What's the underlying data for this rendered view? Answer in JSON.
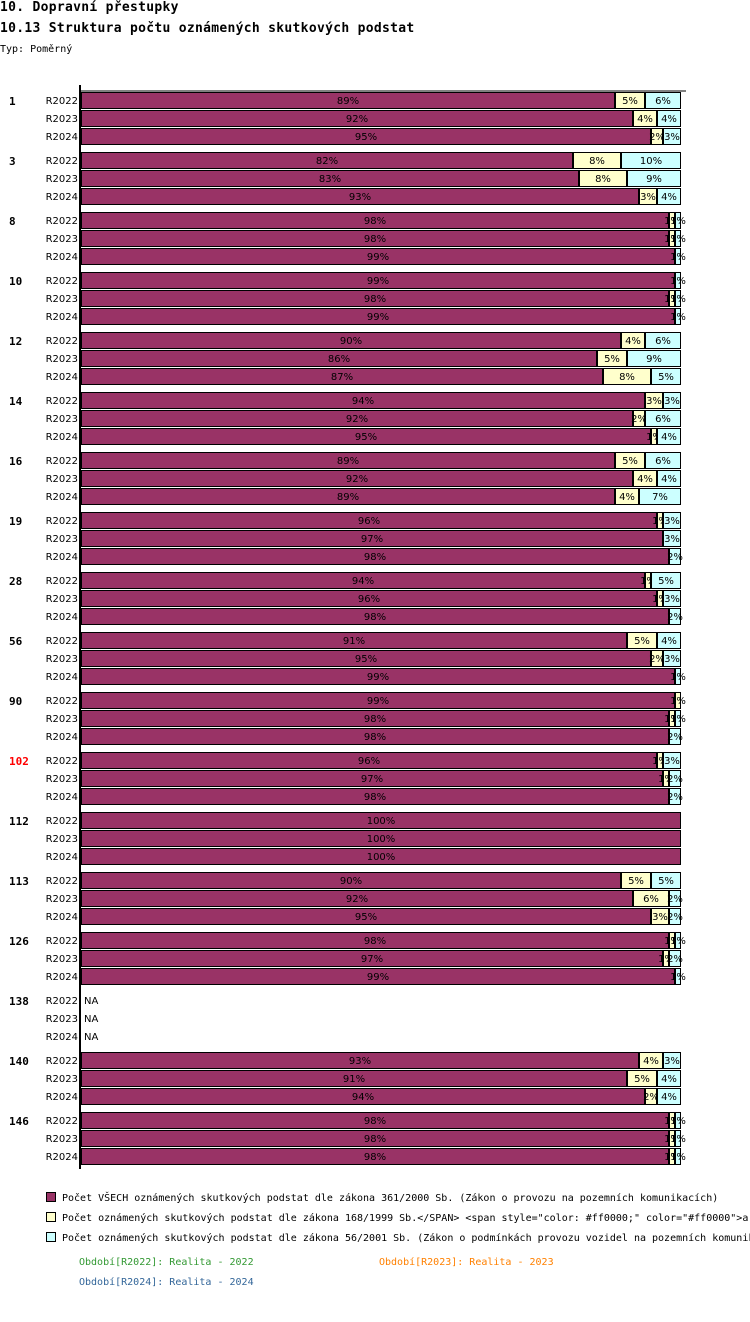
{
  "header": {
    "title": "10. Dopravní přestupky",
    "subtitle": "10.13 Struktura počtu oznámených skutkových podstat",
    "type_label": "Typ: Poměrný"
  },
  "colors": {
    "all": "#993366",
    "law168": "#ffffcc",
    "law56": "#ccffff",
    "highlight_group": "#ff0000",
    "period_2022": "#339933",
    "period_2023": "#ff8000",
    "period_2024": "#336699"
  },
  "chart_data": {
    "type": "bar",
    "orientation": "horizontal",
    "stacked": true,
    "percent": true,
    "xlim": [
      0,
      100
    ],
    "series": [
      {
        "name": "Počet VŠECH oznámených skutkových podstat dle zákona 361/2000 Sb. (Zákon o provozu na pozemních komunikacích)",
        "key": "all"
      },
      {
        "name": "Počet oznámených skutkových podstat dle zákona 168/1999 Sb.</SPAN> <span style=\"color: #ff0000;\" color=\"#ff0000\">a",
        "key": "law168"
      },
      {
        "name": "Počet oznámených skutkových podstat dle zákona 56/2001 Sb. (Zákon o podmínkách provozu vozidel na pozemních komunik",
        "key": "law56"
      }
    ],
    "periods": [
      "R2022",
      "R2023",
      "R2024"
    ],
    "groups": [
      {
        "label": "1",
        "highlight": false,
        "rows": [
          [
            89,
            5,
            6
          ],
          [
            92,
            4,
            4
          ],
          [
            95,
            2,
            3
          ]
        ]
      },
      {
        "label": "3",
        "highlight": false,
        "rows": [
          [
            82,
            8,
            10
          ],
          [
            83,
            8,
            9
          ],
          [
            93,
            3,
            4
          ]
        ]
      },
      {
        "label": "8",
        "highlight": false,
        "rows": [
          [
            98,
            1,
            1
          ],
          [
            98,
            1,
            1
          ],
          [
            99,
            0,
            1
          ]
        ]
      },
      {
        "label": "10",
        "highlight": false,
        "rows": [
          [
            99,
            0,
            1
          ],
          [
            98,
            1,
            1
          ],
          [
            99,
            0,
            1
          ]
        ]
      },
      {
        "label": "12",
        "highlight": false,
        "rows": [
          [
            90,
            4,
            6
          ],
          [
            86,
            5,
            9
          ],
          [
            87,
            8,
            5
          ]
        ]
      },
      {
        "label": "14",
        "highlight": false,
        "rows": [
          [
            94,
            3,
            3
          ],
          [
            92,
            2,
            6
          ],
          [
            95,
            1,
            4
          ]
        ]
      },
      {
        "label": "16",
        "highlight": false,
        "rows": [
          [
            89,
            5,
            6
          ],
          [
            92,
            4,
            4
          ],
          [
            89,
            4,
            7
          ]
        ]
      },
      {
        "label": "19",
        "highlight": false,
        "rows": [
          [
            96,
            1,
            3
          ],
          [
            97,
            0,
            3
          ],
          [
            98,
            0,
            2
          ]
        ]
      },
      {
        "label": "28",
        "highlight": false,
        "rows": [
          [
            94,
            1,
            5
          ],
          [
            96,
            1,
            3
          ],
          [
            98,
            0,
            2
          ]
        ]
      },
      {
        "label": "56",
        "highlight": false,
        "rows": [
          [
            91,
            5,
            4
          ],
          [
            95,
            2,
            3
          ],
          [
            99,
            0,
            1
          ]
        ]
      },
      {
        "label": "90",
        "highlight": false,
        "rows": [
          [
            99,
            1,
            0
          ],
          [
            98,
            1,
            1
          ],
          [
            98,
            0,
            2
          ]
        ]
      },
      {
        "label": "102",
        "highlight": true,
        "rows": [
          [
            96,
            1,
            3
          ],
          [
            97,
            1,
            2
          ],
          [
            98,
            0,
            2
          ]
        ]
      },
      {
        "label": "112",
        "highlight": false,
        "rows": [
          [
            100,
            0,
            0
          ],
          [
            100,
            0,
            0
          ],
          [
            100,
            0,
            0
          ]
        ]
      },
      {
        "label": "113",
        "highlight": false,
        "rows": [
          [
            90,
            5,
            5
          ],
          [
            92,
            6,
            2
          ],
          [
            95,
            3,
            2
          ]
        ]
      },
      {
        "label": "126",
        "highlight": false,
        "rows": [
          [
            98,
            1,
            1
          ],
          [
            97,
            1,
            2
          ],
          [
            99,
            0,
            1
          ]
        ]
      },
      {
        "label": "138",
        "highlight": false,
        "rows": [
          null,
          null,
          null
        ]
      },
      {
        "label": "140",
        "highlight": false,
        "rows": [
          [
            93,
            4,
            3
          ],
          [
            91,
            5,
            4
          ],
          [
            94,
            2,
            4
          ]
        ]
      },
      {
        "label": "146",
        "highlight": false,
        "rows": [
          [
            98,
            1,
            1
          ],
          [
            98,
            1,
            1
          ],
          [
            98,
            1,
            1
          ]
        ]
      }
    ],
    "na_label": "NA",
    "value_suffix": "%"
  },
  "legend": {
    "items": [
      {
        "key": "all",
        "label": "Počet VŠECH oznámených skutkových podstat dle zákona 361/2000 Sb. (Zákon o provozu na pozemních komunikacích)"
      },
      {
        "key": "law168",
        "label": "Počet oznámených skutkových podstat dle zákona 168/1999 Sb.</SPAN> <span style=\"color: #ff0000;\" color=\"#ff0000\">a"
      },
      {
        "key": "law56",
        "label": "Počet oznámených skutkových podstat dle zákona 56/2001 Sb. (Zákon o podmínkách provozu vozidel na pozemních komunik"
      }
    ],
    "periods": [
      {
        "label": "Období[R2022]: Realita - 2022"
      },
      {
        "label": "Období[R2023]: Realita - 2023"
      },
      {
        "label": "Období[R2024]: Realita - 2024"
      }
    ]
  }
}
